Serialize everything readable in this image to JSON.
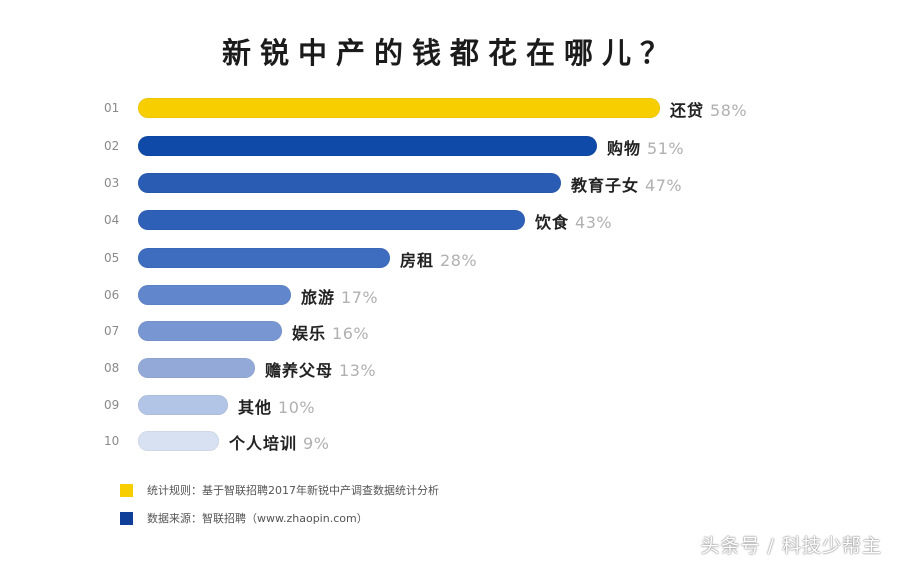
{
  "title": "新锐中产的钱都花在哪儿？",
  "chart_data": {
    "type": "bar",
    "orientation": "horizontal",
    "title": "新锐中产的钱都花在哪儿？",
    "xlabel": "",
    "ylabel": "",
    "grid": false,
    "unit": "%",
    "ranks": [
      "01",
      "02",
      "03",
      "04",
      "05",
      "06",
      "07",
      "08",
      "09",
      "10"
    ],
    "categories": [
      "还贷",
      "购物",
      "教育子女",
      "饮食",
      "房租",
      "旅游",
      "娱乐",
      "赡养父母",
      "其他",
      "个人培训"
    ],
    "values": [
      58,
      51,
      47,
      43,
      28,
      17,
      16,
      13,
      10,
      9
    ],
    "value_labels": [
      "58%",
      "51%",
      "47%",
      "43%",
      "28%",
      "17%",
      "16%",
      "13%",
      "10%",
      "9%"
    ],
    "bar_colors": [
      "#f7cf00",
      "#0f4aa8",
      "#2a5cb4",
      "#2f60b7",
      "#3e6cbf",
      "#6186cc",
      "#7896d2",
      "#93aad9",
      "#b3c5e6",
      "#d7e1f1"
    ],
    "legend": [
      {
        "color": "#f7cf00",
        "label": "统计规则：基于智联招聘2017年新锐中产调查数据统计分析"
      },
      {
        "color": "#0f3f99",
        "label": "数据来源：智联招聘（www.zhaopin.com）"
      }
    ]
  },
  "watermark": "头条号 / 科技少帮主"
}
